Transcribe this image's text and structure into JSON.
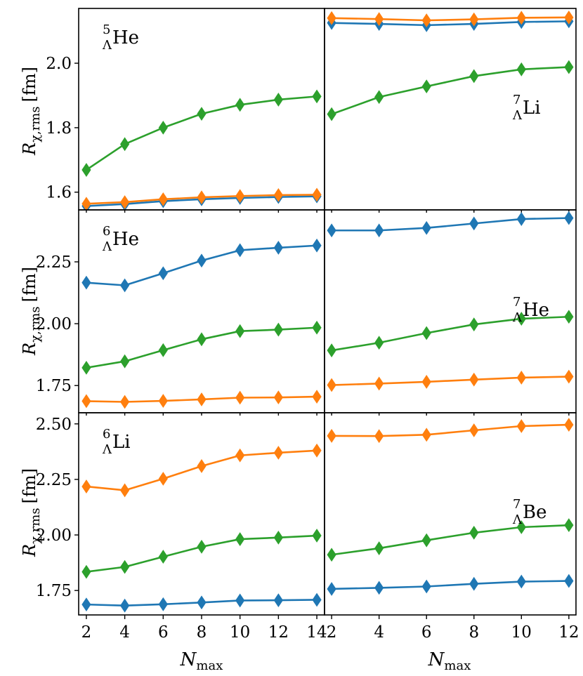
{
  "figure": {
    "ylabel": {
      "symbol": "R",
      "subscript": "χ,rms",
      "unit": "[fm]"
    },
    "xlabel": {
      "symbol": "N",
      "subscript": "max"
    },
    "colors": {
      "blue": "#1f77b4",
      "orange": "#ff7f0e",
      "green": "#2ca02c"
    }
  },
  "chart_data": [
    {
      "type": "line",
      "panel": "row1-left",
      "nucleus": {
        "mass": "5",
        "sub": "Λ",
        "element": "He"
      },
      "nucleus_loc": "top-left",
      "x": [
        2,
        4,
        6,
        8,
        10,
        12,
        14
      ],
      "xlim": [
        1.6,
        14.4
      ],
      "xticks": [
        2,
        4,
        6,
        8,
        10,
        12,
        14
      ],
      "xtick_labels": [
        "2",
        "4",
        "6",
        "8",
        "10",
        "12",
        "14"
      ],
      "ylim": [
        1.545,
        2.17
      ],
      "yticks": [
        1.6,
        1.8,
        2.0
      ],
      "ytick_labels": [
        "1.6",
        "1.8",
        "2.0"
      ],
      "series": [
        {
          "name": "blue",
          "color": "#1f77b4",
          "values": [
            1.557,
            1.563,
            1.572,
            1.578,
            1.582,
            1.585,
            1.587
          ]
        },
        {
          "name": "orange",
          "color": "#ff7f0e",
          "values": [
            1.564,
            1.569,
            1.578,
            1.584,
            1.588,
            1.591,
            1.592
          ]
        },
        {
          "name": "green",
          "color": "#2ca02c",
          "values": [
            1.669,
            1.749,
            1.8,
            1.843,
            1.871,
            1.887,
            1.897
          ]
        }
      ]
    },
    {
      "type": "line",
      "panel": "row1-right",
      "nucleus": {
        "mass": "7",
        "sub": "Λ",
        "element": "Li"
      },
      "nucleus_loc": "right",
      "x": [
        2,
        4,
        6,
        8,
        10,
        12
      ],
      "xlim": [
        1.7,
        12.3
      ],
      "xticks": [
        2,
        4,
        6,
        8,
        10,
        12
      ],
      "xtick_labels": [
        "2",
        "4",
        "6",
        "8",
        "10",
        "12"
      ],
      "ylim": [
        1.545,
        2.17
      ],
      "yticks": [],
      "ytick_labels": [],
      "series": [
        {
          "name": "blue",
          "color": "#1f77b4",
          "values": [
            2.125,
            2.122,
            2.118,
            2.122,
            2.128,
            2.13
          ]
        },
        {
          "name": "orange",
          "color": "#ff7f0e",
          "values": [
            2.14,
            2.137,
            2.133,
            2.136,
            2.141,
            2.142
          ]
        },
        {
          "name": "green",
          "color": "#2ca02c",
          "values": [
            1.842,
            1.895,
            1.928,
            1.96,
            1.981,
            1.988
          ]
        }
      ]
    },
    {
      "type": "line",
      "panel": "row2-left",
      "nucleus": {
        "mass": "6",
        "sub": "Λ",
        "element": "He"
      },
      "nucleus_loc": "top-left",
      "x": [
        2,
        4,
        6,
        8,
        10,
        12,
        14
      ],
      "xlim": [
        1.6,
        14.4
      ],
      "xticks": [
        2,
        4,
        6,
        8,
        10,
        12,
        14
      ],
      "xtick_labels": [
        "2",
        "4",
        "6",
        "8",
        "10",
        "12",
        "14"
      ],
      "ylim": [
        1.64,
        2.46
      ],
      "yticks": [
        1.75,
        2.0,
        2.25
      ],
      "ytick_labels": [
        "1.75",
        "2.00",
        "2.25"
      ],
      "series": [
        {
          "name": "blue",
          "color": "#1f77b4",
          "values": [
            2.166,
            2.155,
            2.204,
            2.255,
            2.297,
            2.307,
            2.316
          ]
        },
        {
          "name": "orange",
          "color": "#ff7f0e",
          "values": [
            1.687,
            1.684,
            1.688,
            1.694,
            1.701,
            1.702,
            1.705
          ]
        },
        {
          "name": "green",
          "color": "#2ca02c",
          "values": [
            1.822,
            1.848,
            1.893,
            1.937,
            1.97,
            1.976,
            1.984
          ]
        }
      ]
    },
    {
      "type": "line",
      "panel": "row2-right",
      "nucleus": {
        "mass": "7",
        "sub": "Λ",
        "element": "He"
      },
      "nucleus_loc": "right",
      "x": [
        2,
        4,
        6,
        8,
        10,
        12
      ],
      "xlim": [
        1.7,
        12.3
      ],
      "xticks": [
        2,
        4,
        6,
        8,
        10,
        12
      ],
      "xtick_labels": [
        "2",
        "4",
        "6",
        "8",
        "10",
        "12"
      ],
      "ylim": [
        1.64,
        2.46
      ],
      "yticks": [],
      "ytick_labels": [],
      "series": [
        {
          "name": "blue",
          "color": "#1f77b4",
          "values": [
            2.377,
            2.377,
            2.387,
            2.405,
            2.423,
            2.427
          ]
        },
        {
          "name": "orange",
          "color": "#ff7f0e",
          "values": [
            1.752,
            1.758,
            1.765,
            1.774,
            1.782,
            1.786
          ]
        },
        {
          "name": "green",
          "color": "#2ca02c",
          "values": [
            1.892,
            1.923,
            1.962,
            1.997,
            2.02,
            2.028
          ]
        }
      ]
    },
    {
      "type": "line",
      "panel": "row3-left",
      "nucleus": {
        "mass": "6",
        "sub": "Λ",
        "element": "Li"
      },
      "nucleus_loc": "top-left",
      "x": [
        2,
        4,
        6,
        8,
        10,
        12,
        14
      ],
      "xlim": [
        1.6,
        14.4
      ],
      "xticks": [
        2,
        4,
        6,
        8,
        10,
        12,
        14
      ],
      "xtick_labels": [
        "2",
        "4",
        "6",
        "8",
        "10",
        "12",
        "14"
      ],
      "ylim": [
        1.64,
        2.55
      ],
      "yticks": [
        1.75,
        2.0,
        2.25,
        2.5
      ],
      "ytick_labels": [
        "1.75",
        "2.00",
        "2.25",
        "2.50"
      ],
      "series": [
        {
          "name": "blue",
          "color": "#1f77b4",
          "values": [
            1.687,
            1.682,
            1.688,
            1.696,
            1.705,
            1.706,
            1.708
          ]
        },
        {
          "name": "orange",
          "color": "#ff7f0e",
          "values": [
            2.218,
            2.201,
            2.253,
            2.31,
            2.358,
            2.37,
            2.38
          ]
        },
        {
          "name": "green",
          "color": "#2ca02c",
          "values": [
            1.834,
            1.856,
            1.902,
            1.947,
            1.981,
            1.988,
            1.997
          ]
        }
      ]
    },
    {
      "type": "line",
      "panel": "row3-right",
      "nucleus": {
        "mass": "7",
        "sub": "Λ",
        "element": "Be"
      },
      "nucleus_loc": "right",
      "x": [
        2,
        4,
        6,
        8,
        10,
        12
      ],
      "xlim": [
        1.7,
        12.3
      ],
      "xticks": [
        2,
        4,
        6,
        8,
        10,
        12
      ],
      "xtick_labels": [
        "2",
        "4",
        "6",
        "8",
        "10",
        "12"
      ],
      "ylim": [
        1.64,
        2.55
      ],
      "yticks": [],
      "ytick_labels": [],
      "series": [
        {
          "name": "blue",
          "color": "#1f77b4",
          "values": [
            1.757,
            1.762,
            1.768,
            1.78,
            1.79,
            1.793
          ]
        },
        {
          "name": "orange",
          "color": "#ff7f0e",
          "values": [
            2.446,
            2.445,
            2.451,
            2.471,
            2.49,
            2.496
          ]
        },
        {
          "name": "green",
          "color": "#2ca02c",
          "values": [
            1.911,
            1.94,
            1.976,
            2.01,
            2.035,
            2.044
          ]
        }
      ]
    }
  ]
}
